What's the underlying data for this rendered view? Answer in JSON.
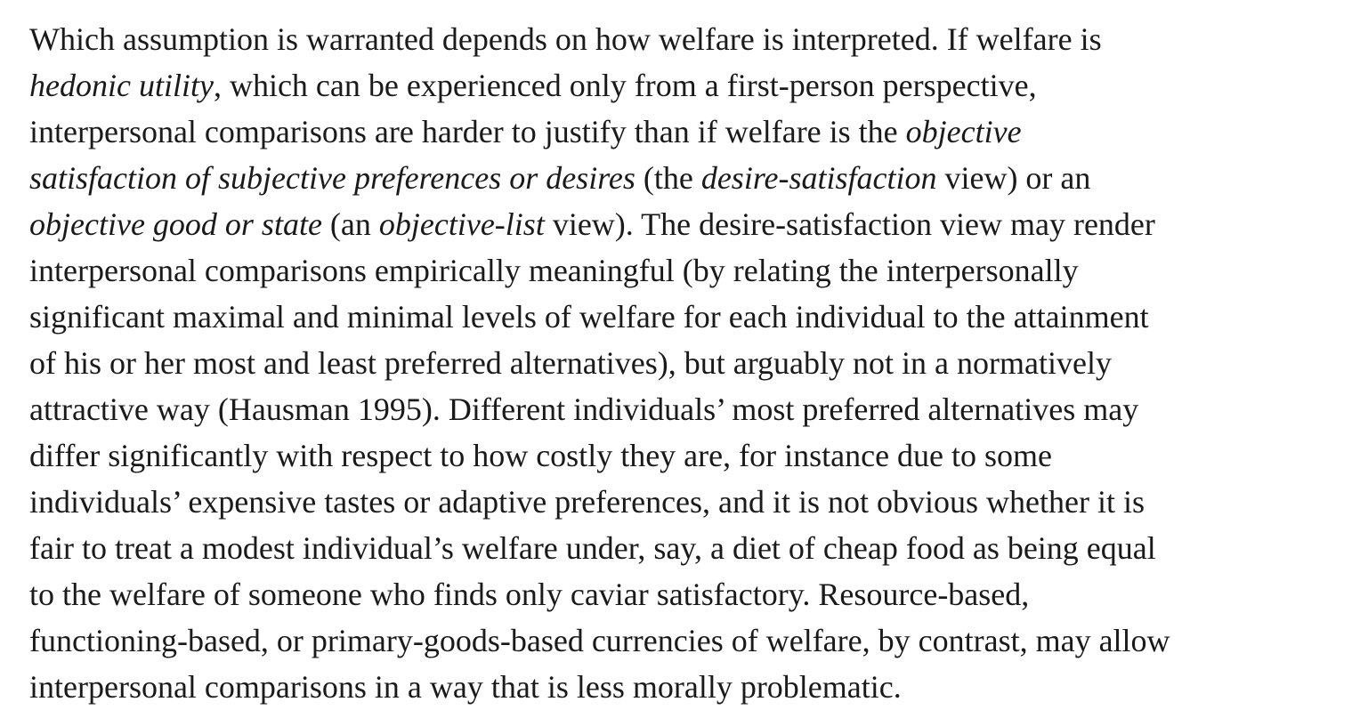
{
  "paragraph": {
    "lines": [
      [
        {
          "t": "Which assumption is warranted depends on how welfare is interpreted. If welfare is",
          "i": false
        }
      ],
      [
        {
          "t": "hedonic utility",
          "i": true
        },
        {
          "t": ", which can be experienced only from a first-person perspective,",
          "i": false
        }
      ],
      [
        {
          "t": "interpersonal comparisons are harder to justify than if welfare is the ",
          "i": false
        },
        {
          "t": "objective",
          "i": true
        }
      ],
      [
        {
          "t": "satisfaction of subjective preferences or desires",
          "i": true
        },
        {
          "t": " (the ",
          "i": false
        },
        {
          "t": "desire-satisfaction",
          "i": true
        },
        {
          "t": " view) or an",
          "i": false
        }
      ],
      [
        {
          "t": "objective good or state",
          "i": true
        },
        {
          "t": " (an ",
          "i": false
        },
        {
          "t": "objective-list",
          "i": true
        },
        {
          "t": " view). The desire-satisfaction view may render",
          "i": false
        }
      ],
      [
        {
          "t": "interpersonal comparisons empirically meaningful (by relating the interpersonally",
          "i": false
        }
      ],
      [
        {
          "t": "significant maximal and minimal levels of welfare for each individual to the attainment",
          "i": false
        }
      ],
      [
        {
          "t": "of his or her most and least preferred alternatives), but arguably not in a normatively",
          "i": false
        }
      ],
      [
        {
          "t": "attractive way (Hausman 1995). Different individuals’ most preferred alternatives may",
          "i": false
        }
      ],
      [
        {
          "t": "differ significantly with respect to how costly they are, for instance due to some",
          "i": false
        }
      ],
      [
        {
          "t": "individuals’ expensive tastes or adaptive preferences, and it is not obvious whether it is",
          "i": false
        }
      ],
      [
        {
          "t": "fair to treat a modest individual’s welfare under, say, a diet of cheap food as being equal",
          "i": false
        }
      ],
      [
        {
          "t": "to the welfare of someone who finds only caviar satisfactory. Resource-based,",
          "i": false
        }
      ],
      [
        {
          "t": "functioning-based, or primary-goods-based currencies of welfare, by contrast, may allow",
          "i": false
        }
      ],
      [
        {
          "t": "interpersonal comparisons in a way that is less morally problematic.",
          "i": false
        }
      ]
    ]
  }
}
